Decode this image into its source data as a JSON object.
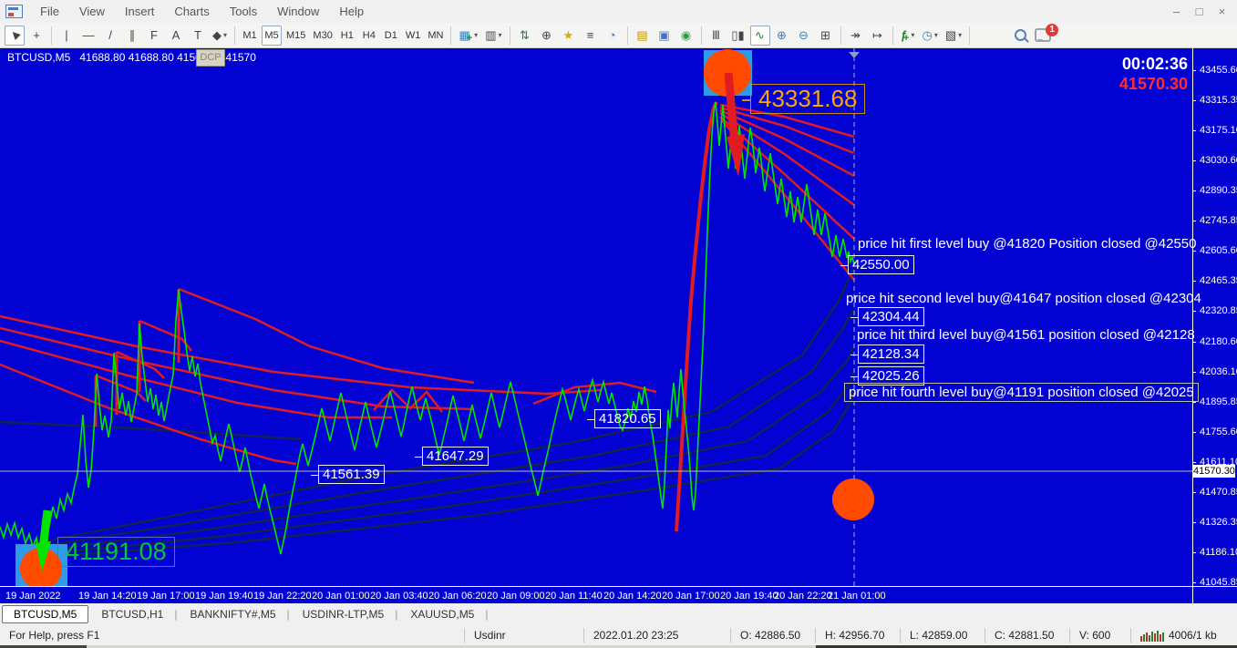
{
  "window": {
    "menu": [
      "File",
      "View",
      "Insert",
      "Charts",
      "Tools",
      "Window",
      "Help"
    ],
    "controls": {
      "minimize": "–",
      "restore": "□",
      "close": "×"
    }
  },
  "toolbar": {
    "groups": [
      [
        {
          "name": "cursor",
          "glyph": "▶",
          "cls": "rot-135",
          "active": true
        },
        {
          "name": "crosshair",
          "glyph": "+"
        }
      ],
      [
        {
          "name": "vertical-line",
          "glyph": "|"
        },
        {
          "name": "horizontal-line",
          "glyph": "—"
        },
        {
          "name": "trendline",
          "glyph": "/"
        },
        {
          "name": "equidistant-channel",
          "glyph": "∥"
        },
        {
          "name": "fibonacci",
          "glyph": "F"
        },
        {
          "name": "text",
          "glyph": "A"
        },
        {
          "name": "text-label",
          "glyph": "T"
        },
        {
          "name": "shapes",
          "glyph": "◆",
          "dd": true
        }
      ],
      [
        {
          "name": "tf-m1",
          "label": "M1"
        },
        {
          "name": "tf-m5",
          "label": "M5",
          "active": true
        },
        {
          "name": "tf-m15",
          "label": "M15"
        },
        {
          "name": "tf-m30",
          "label": "M30"
        },
        {
          "name": "tf-h1",
          "label": "H1"
        },
        {
          "name": "tf-h4",
          "label": "H4"
        },
        {
          "name": "tf-d1",
          "label": "D1"
        },
        {
          "name": "tf-w1",
          "label": "W1"
        },
        {
          "name": "tf-mn",
          "label": "MN"
        }
      ],
      [
        {
          "name": "new-chart",
          "glyph": "▦",
          "plus": true,
          "dd": true
        },
        {
          "name": "profiles",
          "glyph": "▥",
          "dd": true
        }
      ],
      [
        {
          "name": "market-watch",
          "glyph": "⇅"
        },
        {
          "name": "navigator",
          "glyph": "⊕"
        },
        {
          "name": "favorites",
          "glyph": "★"
        },
        {
          "name": "terminal",
          "glyph": "≡"
        },
        {
          "name": "strategy-tester",
          "glyph": "◔"
        }
      ],
      [
        {
          "name": "news",
          "glyph": "▤"
        },
        {
          "name": "metaeditor",
          "glyph": "▣"
        },
        {
          "name": "signal",
          "glyph": "◉"
        }
      ],
      [
        {
          "name": "bar-chart",
          "glyph": "Ⅲ"
        },
        {
          "name": "candlestick-chart",
          "glyph": "▯▮"
        },
        {
          "name": "line-chart",
          "glyph": "∿",
          "active": true
        },
        {
          "name": "zoom-in",
          "glyph": "⊕"
        },
        {
          "name": "zoom-out",
          "glyph": "⊖"
        },
        {
          "name": "tile-windows",
          "glyph": "⊞"
        }
      ],
      [
        {
          "name": "auto-scroll",
          "glyph": "↠"
        },
        {
          "name": "chart-shift",
          "glyph": "↦"
        }
      ],
      [
        {
          "name": "indicators",
          "glyph": "ƒ",
          "plus": true,
          "dd": true
        },
        {
          "name": "periods",
          "glyph": "◷",
          "dd": true
        },
        {
          "name": "templates",
          "glyph": "▧",
          "dd": true
        }
      ],
      [
        {
          "name": "search",
          "css": "magnifier"
        },
        {
          "name": "notifications",
          "css": "bubble",
          "badge": "1"
        }
      ]
    ]
  },
  "chart": {
    "symbol_title": "BTCUSD,M5",
    "ohlc_line": "41688.80 41688.80 41508.70 41570",
    "dcp_button": "DCP",
    "countdown": "00:02:36",
    "current_price": "41570.30",
    "current_price_tag": "41570.30",
    "price_axis": [
      "43455.60",
      "43315.35",
      "43175.10",
      "43030.60",
      "42890.35",
      "42745.85",
      "42605.60",
      "42465.35",
      "42320.85",
      "42180.60",
      "42036.10",
      "41895.85",
      "41755.60",
      "41611.10",
      "41470.85",
      "41326.35",
      "41186.10",
      "41045.85"
    ],
    "time_axis": [
      "19 Jan 2022",
      "19 Jan 14:20",
      "19 Jan 17:00",
      "19 Jan 19:40",
      "19 Jan 22:20",
      "20 Jan 01:00",
      "20 Jan 03:40",
      "20 Jan 06:20",
      "20 Jan 09:00",
      "20 Jan 11:40",
      "20 Jan 14:20",
      "20 Jan 17:00",
      "20 Jan 19:40",
      "20 Jan 22:20",
      "21 Jan 01:00"
    ],
    "labels": {
      "peak_price": "43331.68",
      "close1": "42550.00",
      "close2": "42304.44",
      "close3": "42128.34",
      "close4": "42025.26",
      "level1": "41820.65",
      "level2": "41647.29",
      "level3": "41561.39",
      "entry_price": "41191.08"
    },
    "annotations": {
      "first": "price hit first level buy @41820 Position closed @42550",
      "second": "price hit second level buy@41647 position closed @42304",
      "third": "price hit third level buy@41561 position closed @42128",
      "fourth": "price hit fourth level buy@41191 position closed @42025"
    }
  },
  "chart_data": {
    "type": "line",
    "symbol": "BTCUSD",
    "timeframe": "M5",
    "visible_price_range": [
      41045.85,
      43455.6
    ],
    "visible_time_range": [
      "19 Jan 2022",
      "21 Jan 01:00"
    ],
    "key_points": {
      "buy_levels": [
        41820,
        41647,
        41561,
        41191
      ],
      "close_levels": [
        42550.0,
        42304.44,
        42128.34,
        42025.26
      ],
      "peak": 43331.68,
      "current": 41570.3
    }
  },
  "tabs": [
    {
      "label": "BTCUSD,M5",
      "active": true
    },
    {
      "label": "BTCUSD,H1"
    },
    {
      "label": "BANKNIFTY#,M5"
    },
    {
      "label": "USDINR-LTP,M5"
    },
    {
      "label": "XAUUSD,M5"
    }
  ],
  "status_bar": {
    "help": "For Help, press F1",
    "symbol": "Usdinr",
    "datetime": "2022.01.20 23:25",
    "open": "O: 42886.50",
    "high": "H: 42956.70",
    "low": "L: 42859.00",
    "close": "C: 42881.50",
    "volume": "V: 600",
    "traffic": "4006/1 kb"
  },
  "colors": {
    "chart_bg": "#0202D2",
    "price_line": "#00E400",
    "trend_red": "#E11B22",
    "trend_navy": "#132253",
    "marker_orange": "#FF4A00",
    "marker_blue_bg": "#2F9BE8",
    "label_orange": "#FFA500",
    "label_green": "#00C83C",
    "bid_red": "#FF2E2E"
  }
}
